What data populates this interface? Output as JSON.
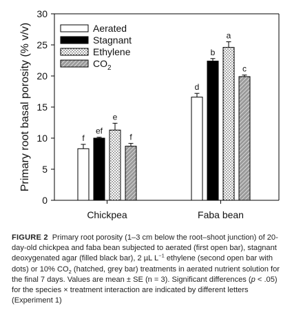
{
  "chart_data": {
    "type": "bar",
    "ylabel": "Primary root basal porosity (% v/v)",
    "ylim": [
      0,
      30
    ],
    "yticks": [
      0,
      5,
      10,
      15,
      20,
      25,
      30
    ],
    "categories": [
      "Chickpea",
      "Faba bean"
    ],
    "legend_position": "top-left",
    "series": [
      {
        "name": "Aerated",
        "pattern": "open",
        "values": [
          8.3,
          16.6
        ],
        "errors": [
          0.7,
          0.6
        ],
        "letters": [
          "f",
          "d"
        ]
      },
      {
        "name": "Stagnant",
        "pattern": "black",
        "values": [
          10.0,
          22.4
        ],
        "errors": [
          0.15,
          0.4
        ],
        "letters": [
          "ef",
          "b"
        ]
      },
      {
        "name": "Ethylene",
        "pattern": "dotted",
        "values": [
          11.3,
          24.6
        ],
        "errors": [
          1.1,
          0.9
        ],
        "letters": [
          "e",
          "a"
        ]
      },
      {
        "name": "CO",
        "sub": "2",
        "pattern": "hatched",
        "values": [
          8.7,
          19.9
        ],
        "errors": [
          0.45,
          0.25
        ],
        "letters": [
          "f",
          "c"
        ]
      }
    ]
  },
  "caption": {
    "label": "FIGURE 2",
    "p1": "Primary root porosity (1–3 cm below the root–shoot junction) of 20-day-old chickpea and faba bean subjected to aerated (first open bar), stagnant deoxygenated agar (filled black bar), 2 µL L",
    "p1_sup": "−1",
    "p2": " ethylene (second open bar with dots) or 10% CO",
    "p2_sub": "2",
    "p3": " (hatched, grey bar) treatments in aerated nutrient solution for the final 7 days. Values are mean ± SE (n = 3). Significant differences (",
    "p3_italic": "p",
    "p4": " < .05) for the species × treatment interaction are indicated by different letters (Experiment 1)"
  }
}
